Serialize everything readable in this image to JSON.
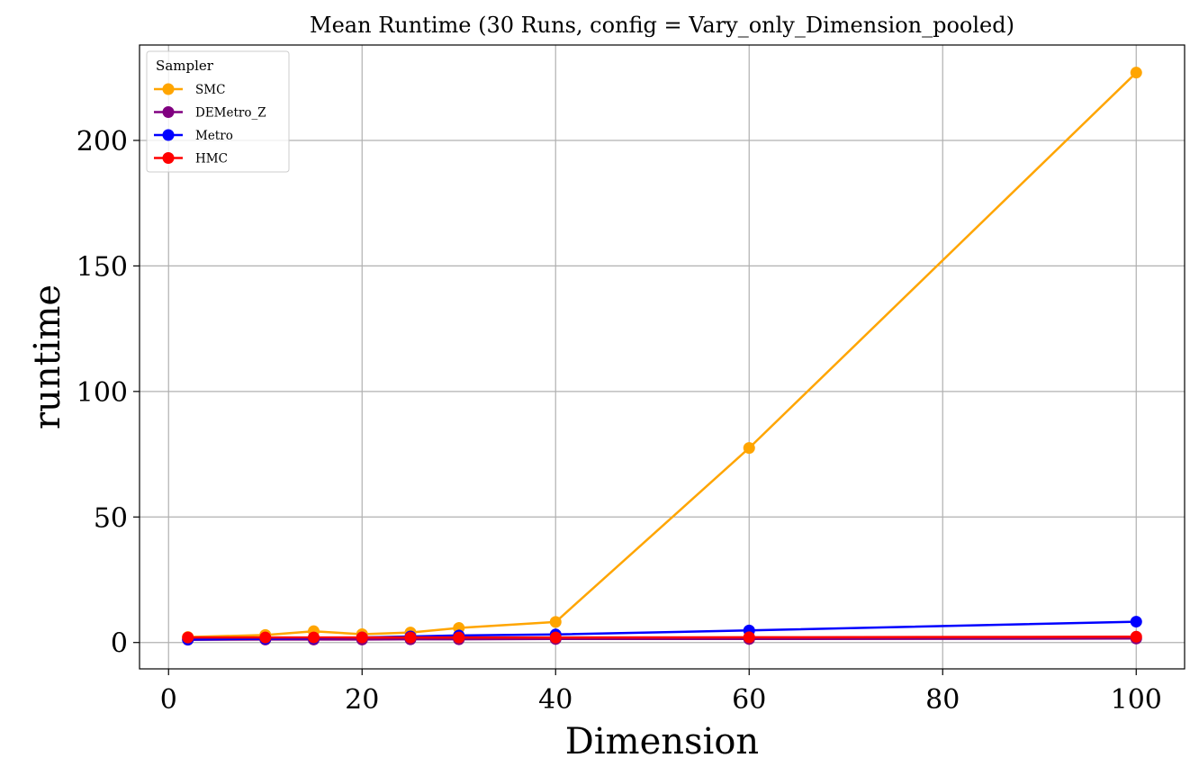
{
  "chart_data": {
    "type": "line",
    "title": "Mean Runtime (30 Runs, config = Vary_only_Dimension_pooled)",
    "xlabel": "Dimension",
    "ylabel": "runtime",
    "xlim": [
      -3,
      105
    ],
    "ylim": [
      -10.5,
      238
    ],
    "xticks": [
      0,
      20,
      40,
      60,
      80,
      100
    ],
    "yticks": [
      0,
      50,
      100,
      150,
      200
    ],
    "grid": true,
    "legend": {
      "title": "Sampler",
      "position": "top-left"
    },
    "x": [
      2,
      10,
      15,
      20,
      25,
      30,
      40,
      60,
      100
    ],
    "series": [
      {
        "name": "SMC",
        "color": "#FFA500",
        "values": [
          2.2,
          3.0,
          4.5,
          3.3,
          4.0,
          5.8,
          8.2,
          77.5,
          227.0
        ]
      },
      {
        "name": "DEMetro_Z",
        "color": "#800080",
        "values": [
          1.1,
          1.2,
          1.2,
          1.2,
          1.3,
          1.3,
          1.4,
          1.4,
          1.6
        ]
      },
      {
        "name": "Metro",
        "color": "#0000FF",
        "values": [
          1.2,
          1.5,
          1.7,
          2.0,
          2.4,
          2.8,
          3.2,
          4.8,
          8.3
        ]
      },
      {
        "name": "HMC",
        "color": "#FF0000",
        "values": [
          2.0,
          2.0,
          2.0,
          2.0,
          2.0,
          2.0,
          2.0,
          2.1,
          2.3
        ]
      }
    ]
  }
}
